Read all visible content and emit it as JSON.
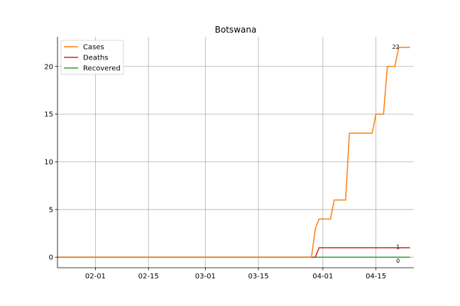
{
  "chart_data": {
    "type": "line",
    "title": "Botswana",
    "xlabel": "",
    "ylabel": "",
    "x_axis": "date",
    "xlim": [
      "2020-01-22",
      "2020-04-25"
    ],
    "xticks": [
      "2020-02-01",
      "2020-02-15",
      "2020-03-01",
      "2020-03-15",
      "2020-04-01",
      "2020-04-15"
    ],
    "xtick_labels": [
      "02-01",
      "02-15",
      "03-01",
      "03-15",
      "04-01",
      "04-15"
    ],
    "ylim": [
      -1.1,
      23.1
    ],
    "yticks": [
      0,
      5,
      10,
      15,
      20
    ],
    "grid": true,
    "legend_position": "top-left",
    "series": [
      {
        "name": "Cases",
        "color": "#ff7f0e",
        "points": [
          [
            "2020-01-22",
            0
          ],
          [
            "2020-03-29",
            0
          ],
          [
            "2020-03-30",
            3
          ],
          [
            "2020-03-31",
            4
          ],
          [
            "2020-04-03",
            4
          ],
          [
            "2020-04-04",
            6
          ],
          [
            "2020-04-07",
            6
          ],
          [
            "2020-04-08",
            13
          ],
          [
            "2020-04-14",
            13
          ],
          [
            "2020-04-15",
            15
          ],
          [
            "2020-04-17",
            15
          ],
          [
            "2020-04-18",
            20
          ],
          [
            "2020-04-20",
            20
          ],
          [
            "2020-04-21",
            22
          ],
          [
            "2020-04-24",
            22
          ]
        ],
        "end_label": "22"
      },
      {
        "name": "Deaths",
        "color": "#d62728",
        "points": [
          [
            "2020-01-22",
            0
          ],
          [
            "2020-03-30",
            0
          ],
          [
            "2020-03-31",
            1
          ],
          [
            "2020-04-24",
            1
          ]
        ],
        "end_label": "1"
      },
      {
        "name": "Recovered",
        "color": "#2ca02c",
        "points": [
          [
            "2020-01-22",
            0
          ],
          [
            "2020-04-24",
            0
          ]
        ],
        "end_label": "0"
      }
    ]
  }
}
